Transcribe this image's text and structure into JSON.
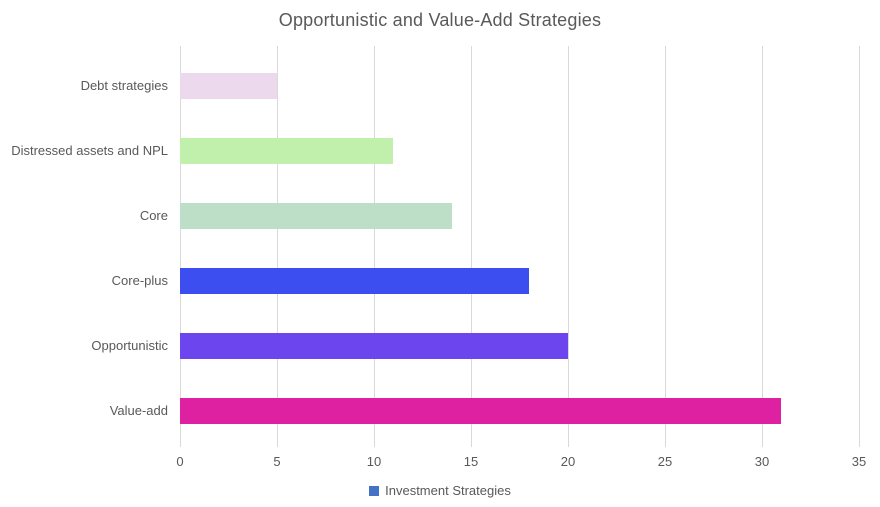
{
  "title": "Opportunistic and Value-Add Strategies",
  "legend": {
    "label": "Investment Strategies",
    "swatch_color": "#4472c4"
  },
  "colors": {
    "gridline": "#d9d9d9",
    "text": "#595959",
    "background": "#ffffff"
  },
  "chart_data": {
    "type": "bar",
    "orientation": "horizontal",
    "title": "Opportunistic and Value-Add Strategies",
    "series_name": "Investment Strategies",
    "categories": [
      "Debt strategies",
      "Distressed assets and NPL",
      "Core",
      "Core-plus",
      "Opportunistic",
      "Value-add"
    ],
    "values": [
      5,
      11,
      14,
      18,
      20,
      31
    ],
    "bar_colors": [
      "#ecd9ee",
      "#c1f0ad",
      "#bddec7",
      "#3c4ef0",
      "#6c45ef",
      "#dd21a1"
    ],
    "xlabel": "",
    "ylabel": "",
    "xlim": [
      0,
      35
    ],
    "x_ticks": [
      0,
      5,
      10,
      15,
      20,
      25,
      30,
      35
    ],
    "grid": "vertical",
    "legend_position": "bottom"
  }
}
